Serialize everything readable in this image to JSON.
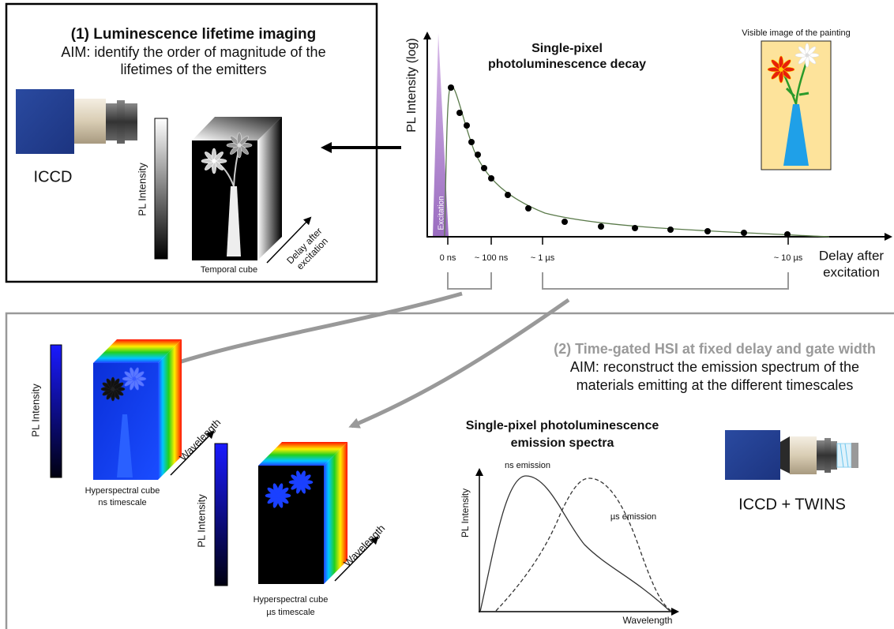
{
  "panel1": {
    "title": "(1) Luminescence lifetime imaging",
    "aim": [
      "AIM: identify the order of magnitude of the",
      "lifetimes of the emitters"
    ],
    "camera_label": "ICCD",
    "colorbar_label": "PL Intensity",
    "cube_label": "Temporal cube",
    "cube_axis": [
      "Delay after",
      "excitation"
    ]
  },
  "decay": {
    "title": [
      "Single-pixel",
      "photoluminescence decay"
    ],
    "y_label": "PL Intensity (log)",
    "excitation": "Excitation",
    "ticks": [
      "0 ns",
      "~ 100 ns",
      "~ 1 µs",
      "~ 10 µs"
    ],
    "x_label": [
      "Delay after",
      "excitation"
    ]
  },
  "painting": {
    "label": "Visible image of the painting"
  },
  "panel2": {
    "title": "(2) Time-gated HSI at fixed delay and gate width",
    "aim": [
      "AIM: reconstruct the emission spectrum of the",
      "materials emitting at the different timescales"
    ],
    "cube_ns": {
      "colorbar_label": "PL Intensity",
      "axis": "Wavelength",
      "label": [
        "Hyperspectral cube",
        "ns timescale"
      ]
    },
    "cube_us": {
      "colorbar_label": "PL Intensity",
      "axis": "Wavelength",
      "label": [
        "Hyperspectral cube",
        "µs timescale"
      ]
    },
    "spectra": {
      "title": [
        "Single-pixel photoluminescence",
        "emission spectra"
      ],
      "y_label": "PL Intensity",
      "x_label": "Wavelength",
      "ns_label": "ns emission",
      "us_label": "µs emission"
    },
    "camera_label": "ICCD + TWINS"
  }
}
